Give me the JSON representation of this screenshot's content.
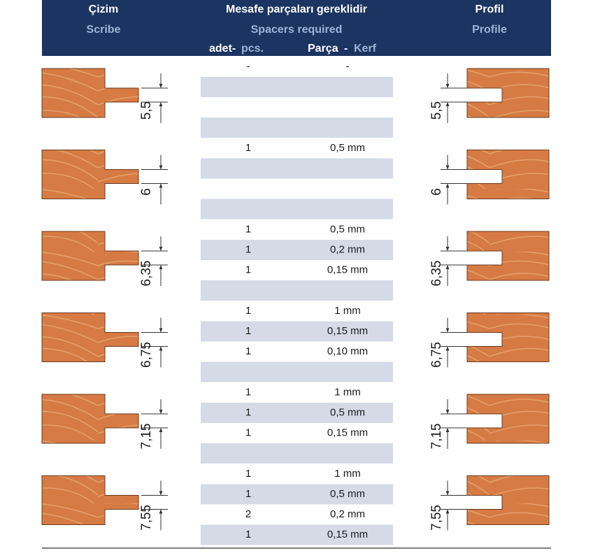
{
  "header": {
    "scribe": {
      "tr": "Çizim",
      "en": "Scribe"
    },
    "spacers": {
      "tr": "Mesafe parçaları gereklidir",
      "en": "Spacers required"
    },
    "profile": {
      "tr": "Profil",
      "en": "Profile"
    },
    "pcs": {
      "tr": "adet-",
      "en": "pcs."
    },
    "kerf": {
      "tr": "Parça",
      "sep": "-",
      "en": "Kerf"
    }
  },
  "groups": [
    {
      "dimension": "5,5",
      "spacers": [
        {
          "pcs": "-",
          "kerf": "-"
        }
      ]
    },
    {
      "dimension": "6",
      "spacers": [
        {
          "pcs": "1",
          "kerf": "0,5 mm"
        }
      ]
    },
    {
      "dimension": "6,35",
      "spacers": [
        {
          "pcs": "1",
          "kerf": "0,5 mm"
        },
        {
          "pcs": "1",
          "kerf": "0,2 mm"
        },
        {
          "pcs": "1",
          "kerf": "0,15 mm"
        }
      ]
    },
    {
      "dimension": "6,75",
      "spacers": [
        {
          "pcs": "1",
          "kerf": "1 mm"
        },
        {
          "pcs": "1",
          "kerf": "0,15 mm"
        },
        {
          "pcs": "1",
          "kerf": "0,10 mm"
        }
      ]
    },
    {
      "dimension": "7,15",
      "spacers": [
        {
          "pcs": "1",
          "kerf": "1 mm"
        },
        {
          "pcs": "1",
          "kerf": "0,5 mm"
        },
        {
          "pcs": "1",
          "kerf": "0,15 mm"
        }
      ]
    },
    {
      "dimension": "7,55",
      "spacers": [
        {
          "pcs": "1",
          "kerf": "1 mm"
        },
        {
          "pcs": "1",
          "kerf": "0,5 mm"
        },
        {
          "pcs": "2",
          "kerf": "0,2 mm"
        },
        {
          "pcs": "1",
          "kerf": "0,15 mm"
        }
      ]
    }
  ]
}
